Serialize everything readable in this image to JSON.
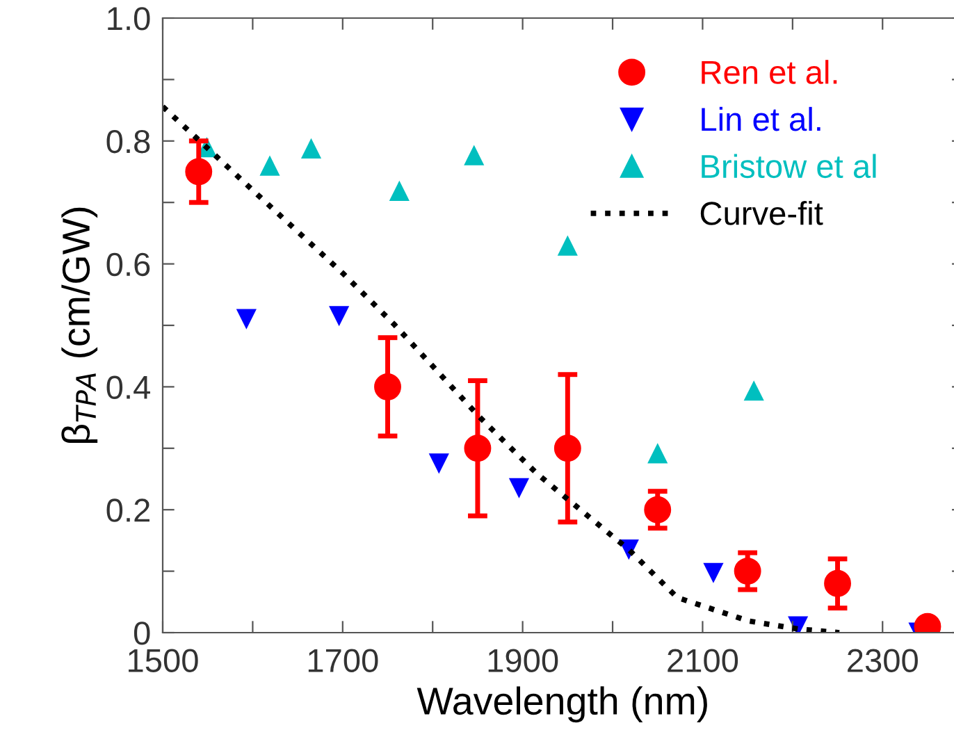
{
  "chart_data": {
    "type": "scatter",
    "xlabel": "Wavelength (nm)",
    "ylabel": "β$_{TPA}$ (cm/GW)",
    "xlim": [
      1500,
      2390
    ],
    "ylim": [
      0,
      1.0
    ],
    "xticks": [
      1500,
      {
        "value": 1600,
        "label": null
      },
      1700,
      {
        "value": 1800,
        "label": null
      },
      1900,
      {
        "value": 2000,
        "label": null
      },
      2100,
      {
        "value": 2200,
        "label": null
      },
      2300
    ],
    "yticks": [
      0,
      {
        "value": 0.1,
        "label": null
      },
      0.2,
      {
        "value": 0.3,
        "label": null
      },
      0.4,
      {
        "value": 0.5,
        "label": null
      },
      0.6,
      {
        "value": 0.7,
        "label": null
      },
      0.8,
      {
        "value": 0.9,
        "label": null
      },
      {
        "value": 1.0,
        "label": "1.0"
      }
    ],
    "grid": false,
    "legend": "top right",
    "series": [
      {
        "name": "Ren et al.",
        "color": "#ff0000",
        "marker": "circle",
        "x": [
          1540,
          1750,
          1850,
          1950,
          2050,
          2150,
          2250,
          2350
        ],
        "values": [
          0.75,
          0.4,
          0.3,
          0.3,
          0.2,
          0.1,
          0.08,
          0.01
        ],
        "errors": [
          [
            0.7,
            0.8
          ],
          [
            0.32,
            0.48
          ],
          [
            0.19,
            0.41
          ],
          [
            0.18,
            0.42
          ],
          [
            0.17,
            0.23
          ],
          [
            0.07,
            0.13
          ],
          [
            0.04,
            0.12
          ],
          null
        ]
      },
      {
        "name": "Lin et al.",
        "color": "#0000ff",
        "marker": "triangle_down",
        "x": [
          1593,
          1696,
          1807,
          1896,
          2018,
          2112,
          2206,
          2340
        ],
        "values": [
          0.51,
          0.515,
          0.275,
          0.235,
          0.135,
          0.097,
          0.01,
          0.0
        ]
      },
      {
        "name": "Bristow et al",
        "color": "#00bfbf",
        "marker": "triangle",
        "x": [
          1549,
          1619,
          1665,
          1763,
          1846,
          1950,
          2050,
          2157
        ],
        "values": [
          0.79,
          0.76,
          0.788,
          0.719,
          0.777,
          0.63,
          0.292,
          0.394
        ]
      },
      {
        "name": "Curve-fit",
        "type": "line",
        "color": "#000000",
        "line_style": "dotted",
        "marker": "none",
        "x": [
          1500,
          1600,
          1700,
          1757,
          1852,
          1915,
          1946,
          2018,
          2072,
          2151,
          2206,
          2252
        ],
        "values": [
          0.856,
          0.72,
          0.585,
          0.502,
          0.351,
          0.26,
          0.222,
          0.135,
          0.057,
          0.019,
          0.006,
          0.0
        ]
      }
    ]
  }
}
